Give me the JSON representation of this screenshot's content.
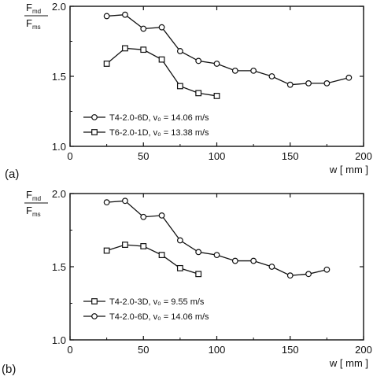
{
  "chart_data": [
    {
      "type": "line",
      "panel_label": "(a)",
      "ylabel_num_main": "F",
      "ylabel_num_sub": "md",
      "ylabel_den_main": "F",
      "ylabel_den_sub": "ms",
      "xlabel": "w [ mm ]",
      "xlim": [
        0,
        200
      ],
      "ylim": [
        1.0,
        2.0
      ],
      "xticks": [
        "0",
        "50",
        "100",
        "150",
        "200"
      ],
      "yticks": [
        "2.0",
        "1.5",
        "1.0"
      ],
      "grid": false,
      "legend_position": "bottom-left",
      "series": [
        {
          "name": "T4-2.0-6D, v₀ = 14.06 m/s",
          "marker": "circle",
          "x": [
            25,
            37.5,
            50,
            62.5,
            75,
            87.5,
            100,
            112.5,
            125,
            137.5,
            150,
            162.5,
            175,
            190
          ],
          "y": [
            1.93,
            1.94,
            1.84,
            1.85,
            1.68,
            1.61,
            1.59,
            1.54,
            1.54,
            1.5,
            1.44,
            1.45,
            1.45,
            1.49
          ]
        },
        {
          "name": "T6-2.0-1D, v₀ = 13.38 m/s",
          "marker": "square",
          "x": [
            25,
            37.5,
            50,
            62.5,
            75,
            87.5,
            100
          ],
          "y": [
            1.59,
            1.7,
            1.69,
            1.62,
            1.43,
            1.38,
            1.36
          ]
        }
      ]
    },
    {
      "type": "line",
      "panel_label": "(b)",
      "ylabel_num_main": "F",
      "ylabel_num_sub": "md",
      "ylabel_den_main": "F",
      "ylabel_den_sub": "ms",
      "xlabel": "w [ mm ]",
      "xlim": [
        0,
        200
      ],
      "ylim": [
        1.0,
        2.0
      ],
      "xticks": [
        "0",
        "50",
        "100",
        "150",
        "200"
      ],
      "yticks": [
        "2.0",
        "1.5",
        "1.0"
      ],
      "grid": false,
      "legend_position": "bottom-left",
      "series": [
        {
          "name": "T4-2.0-3D, v₀ = 9.55 m/s",
          "marker": "square",
          "x": [
            25,
            37.5,
            50,
            62.5,
            75,
            87.5
          ],
          "y": [
            1.61,
            1.65,
            1.64,
            1.58,
            1.49,
            1.45
          ]
        },
        {
          "name": "T4-2.0-6D, v₀ = 14.06 m/s",
          "marker": "circle",
          "x": [
            25,
            37.5,
            50,
            62.5,
            75,
            87.5,
            100,
            112.5,
            125,
            137.5,
            150,
            162.5,
            175
          ],
          "y": [
            1.94,
            1.95,
            1.84,
            1.85,
            1.68,
            1.6,
            1.58,
            1.54,
            1.54,
            1.5,
            1.44,
            1.45,
            1.48
          ]
        }
      ]
    }
  ]
}
